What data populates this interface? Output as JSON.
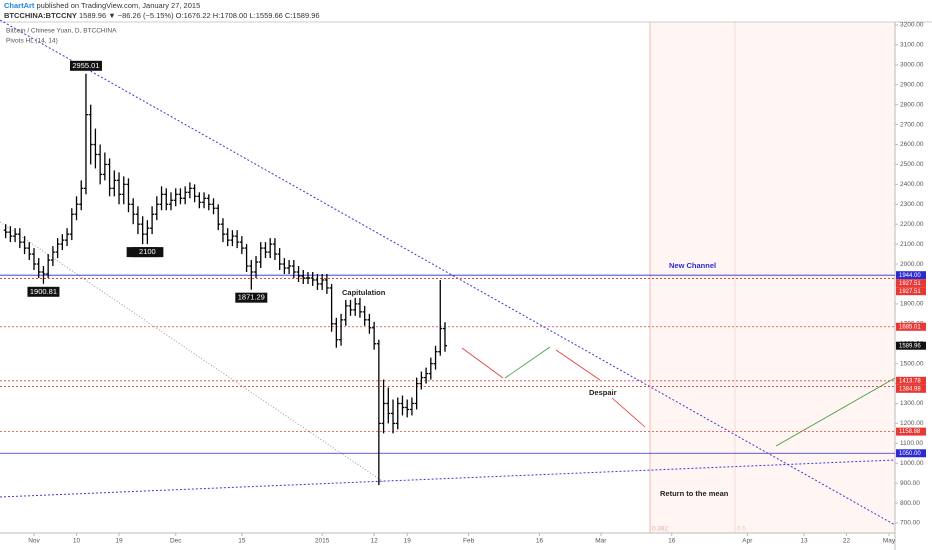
{
  "header": {
    "author": "ChartArt",
    "published": "published on TradingView.com, January 27, 2015",
    "symbol": "BTCCHINA:BTCCNY",
    "quote": "1589.96 ▼ −86.26 (−5.15%) O:1676.22 H:1708.00 L:1559.66 C:1589.96"
  },
  "chart_data": {
    "type": "ohlc",
    "indicator": "Pivots HL (14, 14)",
    "series": [
      {
        "name": "Bitcoin / Chinese Yuan, D, BTCCHINA",
        "color": "#000000",
        "x": [
          "2014-10-26",
          "2014-10-27",
          "2014-10-28",
          "2014-10-29",
          "2014-10-30",
          "2014-10-31",
          "2014-11-01",
          "2014-11-02",
          "2014-11-03",
          "2014-11-04",
          "2014-11-05",
          "2014-11-06",
          "2014-11-07",
          "2014-11-08",
          "2014-11-09",
          "2014-11-10",
          "2014-11-11",
          "2014-11-12",
          "2014-11-13",
          "2014-11-14",
          "2014-11-15",
          "2014-11-16",
          "2014-11-17",
          "2014-11-18",
          "2014-11-19",
          "2014-11-20",
          "2014-11-21",
          "2014-11-22",
          "2014-11-23",
          "2014-11-24",
          "2014-11-25",
          "2014-11-26",
          "2014-11-27",
          "2014-11-28",
          "2014-11-29",
          "2014-11-30",
          "2014-12-01",
          "2014-12-02",
          "2014-12-03",
          "2014-12-04",
          "2014-12-05",
          "2014-12-06",
          "2014-12-07",
          "2014-12-08",
          "2014-12-09",
          "2014-12-10",
          "2014-12-11",
          "2014-12-12",
          "2014-12-13",
          "2014-12-14",
          "2014-12-15",
          "2014-12-16",
          "2014-12-17",
          "2014-12-18",
          "2014-12-19",
          "2014-12-20",
          "2014-12-21",
          "2014-12-22",
          "2014-12-23",
          "2014-12-24",
          "2014-12-25",
          "2014-12-26",
          "2014-12-27",
          "2014-12-28",
          "2014-12-29",
          "2014-12-30",
          "2014-12-31",
          "2015-01-01",
          "2015-01-02",
          "2015-01-03",
          "2015-01-04",
          "2015-01-05",
          "2015-01-06",
          "2015-01-07",
          "2015-01-08",
          "2015-01-09",
          "2015-01-10",
          "2015-01-11",
          "2015-01-12",
          "2015-01-13",
          "2015-01-14",
          "2015-01-15",
          "2015-01-16",
          "2015-01-17",
          "2015-01-18",
          "2015-01-19",
          "2015-01-20",
          "2015-01-21",
          "2015-01-22",
          "2015-01-23",
          "2015-01-24",
          "2015-01-25",
          "2015-01-26",
          "2015-01-27"
        ],
        "open": [
          2170,
          2160,
          2140,
          2150,
          2110,
          2080,
          2050,
          2000,
          1960,
          1950,
          2020,
          2060,
          2100,
          2120,
          2150,
          2250,
          2300,
          2380,
          2750,
          2600,
          2550,
          2450,
          2500,
          2380,
          2420,
          2350,
          2400,
          2300,
          2250,
          2200,
          2150,
          2180,
          2250,
          2300,
          2350,
          2300,
          2320,
          2350,
          2330,
          2360,
          2380,
          2340,
          2310,
          2330,
          2300,
          2280,
          2200,
          2150,
          2120,
          2140,
          2110,
          2080,
          1990,
          1960,
          2010,
          2080,
          2060,
          2100,
          2050,
          2000,
          1980,
          1990,
          1960,
          1940,
          1930,
          1930,
          1920,
          1900,
          1920,
          1880,
          1700,
          1620,
          1720,
          1790,
          1770,
          1800,
          1760,
          1720,
          1680,
          1600,
          1200,
          1300,
          1250,
          1200,
          1300,
          1280,
          1270,
          1300,
          1400,
          1430,
          1450,
          1500,
          1560,
          1676.22
        ],
        "high": [
          2200,
          2190,
          2180,
          2180,
          2140,
          2110,
          2080,
          2030,
          1990,
          2050,
          2090,
          2130,
          2150,
          2180,
          2280,
          2340,
          2420,
          2955.01,
          2800,
          2680,
          2600,
          2560,
          2530,
          2470,
          2460,
          2440,
          2430,
          2330,
          2290,
          2240,
          2220,
          2290,
          2340,
          2390,
          2380,
          2360,
          2380,
          2380,
          2390,
          2410,
          2400,
          2360,
          2360,
          2350,
          2330,
          2300,
          2230,
          2180,
          2170,
          2170,
          2140,
          2100,
          2020,
          2040,
          2110,
          2110,
          2130,
          2130,
          2080,
          2030,
          2020,
          2020,
          1990,
          1970,
          1960,
          1960,
          1950,
          1950,
          1950,
          1900,
          1730,
          1750,
          1820,
          1820,
          1830,
          1830,
          1790,
          1750,
          1710,
          1620,
          1420,
          1380,
          1320,
          1330,
          1340,
          1320,
          1330,
          1430,
          1460,
          1480,
          1530,
          1590,
          1920,
          1708
        ],
        "low": [
          2130,
          2110,
          2110,
          2080,
          2050,
          2020,
          1970,
          1930,
          1900.81,
          1930,
          1990,
          2030,
          2070,
          2090,
          2120,
          2220,
          2270,
          2350,
          2500,
          2480,
          2400,
          2420,
          2340,
          2340,
          2300,
          2300,
          2260,
          2200,
          2150,
          2100,
          2100,
          2150,
          2220,
          2270,
          2270,
          2270,
          2290,
          2300,
          2300,
          2330,
          2310,
          2280,
          2280,
          2270,
          2250,
          2170,
          2110,
          2090,
          2090,
          2080,
          2050,
          1960,
          1871.29,
          1930,
          1980,
          2030,
          2030,
          2020,
          1970,
          1950,
          1950,
          1930,
          1910,
          1900,
          1900,
          1890,
          1870,
          1870,
          1850,
          1660,
          1580,
          1590,
          1690,
          1740,
          1740,
          1730,
          1690,
          1650,
          1570,
          890,
          1150,
          1200,
          1150,
          1170,
          1240,
          1230,
          1240,
          1270,
          1370,
          1400,
          1420,
          1470,
          1540,
          1559.66
        ],
        "close": [
          2160,
          2140,
          2150,
          2110,
          2080,
          2050,
          2000,
          1960,
          1950,
          2020,
          2060,
          2100,
          2120,
          2150,
          2250,
          2300,
          2380,
          2750,
          2600,
          2550,
          2450,
          2500,
          2380,
          2420,
          2350,
          2400,
          2300,
          2250,
          2200,
          2150,
          2180,
          2250,
          2300,
          2350,
          2300,
          2320,
          2350,
          2330,
          2360,
          2380,
          2340,
          2310,
          2330,
          2300,
          2280,
          2200,
          2150,
          2120,
          2140,
          2110,
          2080,
          1990,
          1960,
          2010,
          2080,
          2060,
          2100,
          2050,
          2000,
          1980,
          1990,
          1960,
          1940,
          1930,
          1930,
          1920,
          1900,
          1920,
          1880,
          1700,
          1620,
          1720,
          1790,
          1770,
          1800,
          1760,
          1720,
          1680,
          1600,
          1200,
          1300,
          1250,
          1200,
          1300,
          1280,
          1270,
          1300,
          1400,
          1430,
          1450,
          1500,
          1560,
          1676.22,
          1589.96
        ]
      }
    ],
    "ylim": [
      700,
      3200
    ],
    "yticks": [
      {
        "value": 700,
        "label": "700.00"
      },
      {
        "value": 800,
        "label": "800.00"
      },
      {
        "value": 900,
        "label": "900.00"
      },
      {
        "value": 1000,
        "label": "1000.00"
      },
      {
        "value": 1100,
        "label": "1100.00"
      },
      {
        "value": 1200,
        "label": "1200.00"
      },
      {
        "value": 1300,
        "label": "1300.00"
      },
      {
        "value": 1400,
        "label": "1400.00"
      },
      {
        "value": 1500,
        "label": "1500.00"
      },
      {
        "value": 1600,
        "label": "1600.00"
      },
      {
        "value": 1700,
        "label": "1700.00"
      },
      {
        "value": 1800,
        "label": "1800.00"
      },
      {
        "value": 1900,
        "label": "1900.00"
      },
      {
        "value": 2000,
        "label": "2000.00"
      },
      {
        "value": 2100,
        "label": "2100.00"
      },
      {
        "value": 2200,
        "label": "2200.00"
      },
      {
        "value": 2300,
        "label": "2300.00"
      },
      {
        "value": 2400,
        "label": "2400.00"
      },
      {
        "value": 2500,
        "label": "2500.00"
      },
      {
        "value": 2600,
        "label": "2600.00"
      },
      {
        "value": 2700,
        "label": "2700.00"
      },
      {
        "value": 2800,
        "label": "2800.00"
      },
      {
        "value": 2900,
        "label": "2900.00"
      },
      {
        "value": 3000,
        "label": "3000.00"
      },
      {
        "value": 3100,
        "label": "3100.00"
      },
      {
        "value": 3200,
        "label": "3200.00"
      }
    ],
    "xticks": [
      {
        "value": "2014-11-01",
        "label": "Nov"
      },
      {
        "value": "2014-11-10",
        "label": "10"
      },
      {
        "value": "2014-11-19",
        "label": "19"
      },
      {
        "value": "2014-12-01",
        "label": "Dec"
      },
      {
        "value": "2014-12-15",
        "label": "15"
      },
      {
        "value": "2015-01-01",
        "label": "2015"
      },
      {
        "value": "2015-01-12",
        "label": "12"
      },
      {
        "value": "2015-01-19",
        "label": "19"
      },
      {
        "value": "2015-02-01",
        "label": "Feb"
      },
      {
        "value": "2015-02-16",
        "label": "16"
      },
      {
        "value": "2015-03-01",
        "label": "Mar"
      },
      {
        "value": "2015-03-16",
        "label": "16"
      },
      {
        "value": "2015-04-01",
        "label": "Apr"
      },
      {
        "value": "2015-04-13",
        "label": "13"
      },
      {
        "value": "2015-04-22",
        "label": "22"
      },
      {
        "value": "2015-05-01",
        "label": "May"
      }
    ],
    "levels": [
      {
        "value": 1944,
        "label": "1944.00",
        "color": "#2b2bd0",
        "style": "solid"
      },
      {
        "value": 1927.51,
        "label": "1927.51",
        "color": "#e53935",
        "style": "dotted"
      },
      {
        "value": 1927.51,
        "label": "1927.51",
        "color": "#e53935",
        "style": "dotted"
      },
      {
        "value": 1685.01,
        "label": "1685.01",
        "color": "#e53935",
        "style": "dotted"
      },
      {
        "value": 1413.78,
        "label": "1413.78",
        "color": "#e53935",
        "style": "dotted"
      },
      {
        "value": 1384.98,
        "label": "1384.98",
        "color": "#e53935",
        "style": "dotted"
      },
      {
        "value": 1158.88,
        "label": "1158.88",
        "color": "#e53935",
        "style": "dotted"
      },
      {
        "value": 1050,
        "label": "1050.00",
        "color": "#2b2bd0",
        "style": "solid"
      }
    ],
    "annotations": {
      "capitulation": "Capitulation",
      "new_channel": "New Channel",
      "despair": "Despair",
      "return": "Return to the mean",
      "fib1": "0.382",
      "fib2": "0.5"
    }
  }
}
